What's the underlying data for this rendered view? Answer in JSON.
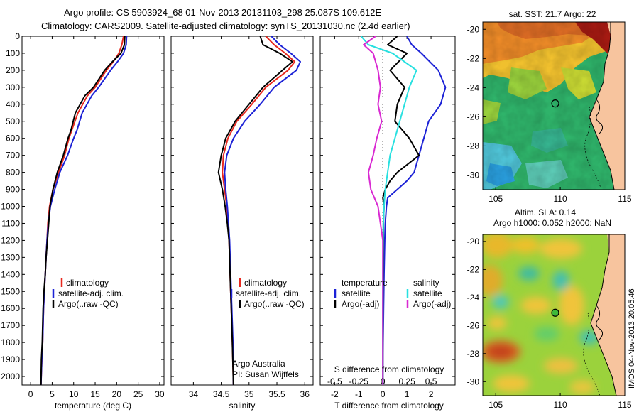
{
  "header": {
    "title_line1": "Argo profile: CS 5903924_68 01-Nov-2013 20131103_298 25.087S 109.612E",
    "title_line2": "Climatology: CARS2009. Satellite-adjusted climatology: synTS_20131030.nc (2.4d earlier)"
  },
  "colors": {
    "climatology": "#e8281e",
    "satellite": "#1c22d6",
    "argo": "#000000",
    "salinity_satellite": "#28e0e0",
    "salinity_argo": "#d92ad2"
  },
  "chart_data": [
    {
      "type": "line",
      "id": "temperature",
      "xlabel": "temperature (deg C)",
      "ylabel": "",
      "xlim": [
        -2,
        31
      ],
      "ylim": [
        2050,
        0
      ],
      "xticks": [
        0,
        5,
        10,
        15,
        20,
        25,
        30
      ],
      "yticks": [
        0,
        100,
        200,
        300,
        400,
        500,
        600,
        700,
        800,
        900,
        1000,
        1100,
        1200,
        1300,
        1400,
        1500,
        1600,
        1700,
        1800,
        1900,
        2000
      ],
      "legend": [
        "climatology",
        "satellite-adj. clim.",
        "Argo(..raw -QC)"
      ],
      "series": [
        {
          "name": "climatology",
          "color_key": "climatology",
          "x": [
            21.6,
            21.2,
            20.5,
            19.2,
            17.6,
            15.0,
            13.2,
            11.0,
            9.6,
            8.9,
            7.9,
            6.5,
            5.2,
            4.4,
            4.0,
            3.8,
            3.6,
            3.4,
            3.2,
            3.0,
            2.8,
            2.6,
            2.4
          ],
          "y": [
            0,
            50,
            100,
            150,
            200,
            300,
            350,
            450,
            550,
            600,
            700,
            800,
            900,
            1000,
            1100,
            1200,
            1300,
            1400,
            1500,
            1600,
            1800,
            1900,
            2050
          ]
        },
        {
          "name": "satellite-adj. clim.",
          "color_key": "satellite",
          "x": [
            22.3,
            22.2,
            21.6,
            20.2,
            18.6,
            15.8,
            14.2,
            12.0,
            10.8,
            10.0,
            8.6,
            6.8,
            5.6,
            4.6,
            4.1,
            3.8,
            3.6,
            3.4,
            3.2,
            3.0,
            2.8,
            2.6,
            2.4
          ],
          "y": [
            0,
            50,
            100,
            150,
            200,
            300,
            350,
            450,
            550,
            600,
            700,
            800,
            900,
            1000,
            1100,
            1200,
            1300,
            1400,
            1500,
            1600,
            1800,
            1900,
            2050
          ]
        },
        {
          "name": "Argo(..raw -QC)",
          "color_key": "argo",
          "x": [
            21.9,
            21.8,
            21.0,
            19.0,
            17.2,
            14.6,
            12.6,
            10.4,
            9.4,
            8.7,
            7.6,
            6.2,
            5.2,
            4.5,
            4.2,
            3.9,
            3.6,
            3.4,
            3.1,
            2.9,
            2.7,
            2.5,
            2.4
          ],
          "y": [
            0,
            50,
            100,
            150,
            200,
            300,
            350,
            450,
            550,
            600,
            700,
            800,
            900,
            1000,
            1100,
            1200,
            1300,
            1400,
            1500,
            1600,
            1800,
            1900,
            2050
          ]
        }
      ]
    },
    {
      "type": "line",
      "id": "salinity",
      "xlabel": "salinity",
      "xlim": [
        33.6,
        36.15
      ],
      "ylim": [
        2050,
        0
      ],
      "xticks": [
        34,
        34.5,
        35,
        35.5,
        36
      ],
      "legend": [
        "climatology",
        "satellite-adj. clim.",
        "Argo(..raw -QC)"
      ],
      "annotation": [
        "Argo Australia",
        "PI: Susan Wijffels"
      ],
      "series": [
        {
          "name": "climatology",
          "color_key": "climatology",
          "x": [
            35.3,
            35.45,
            35.65,
            35.82,
            35.7,
            35.3,
            35.05,
            34.78,
            34.62,
            34.54,
            34.52,
            34.56,
            34.6,
            34.62,
            34.64,
            34.66,
            34.68,
            34.7,
            34.72
          ],
          "y": [
            0,
            50,
            100,
            150,
            200,
            300,
            400,
            500,
            600,
            700,
            800,
            900,
            1000,
            1100,
            1200,
            1400,
            1600,
            1800,
            2050
          ]
        },
        {
          "name": "satellite-adj. clim.",
          "color_key": "satellite",
          "x": [
            35.4,
            35.55,
            35.75,
            35.92,
            35.85,
            35.45,
            35.2,
            34.92,
            34.72,
            34.6,
            34.56,
            34.58,
            34.61,
            34.63,
            34.65,
            34.67,
            34.69,
            34.71,
            34.72
          ],
          "y": [
            0,
            50,
            100,
            150,
            200,
            300,
            400,
            500,
            600,
            700,
            800,
            900,
            1000,
            1100,
            1200,
            1400,
            1600,
            1800,
            2050
          ]
        },
        {
          "name": "Argo(..raw -QC)",
          "color_key": "argo",
          "x": [
            35.2,
            35.25,
            35.55,
            35.78,
            35.6,
            35.25,
            35.0,
            34.75,
            34.58,
            34.5,
            34.45,
            34.52,
            34.57,
            34.61,
            34.64,
            34.66,
            34.68,
            34.7,
            34.72
          ],
          "y": [
            0,
            50,
            100,
            150,
            200,
            300,
            400,
            500,
            600,
            700,
            800,
            900,
            1000,
            1100,
            1200,
            1400,
            1600,
            1800,
            2050
          ]
        }
      ]
    },
    {
      "type": "line",
      "id": "differences",
      "xlabel": "T difference from climatology",
      "xlabel_top": "S difference from climatology",
      "xlim": [
        -2.6,
        3.0
      ],
      "ylim": [
        2050,
        0
      ],
      "xticks": [
        -2,
        -1,
        0,
        1,
        2
      ],
      "xticks_s": [
        "-0.5",
        "-0.25",
        "0",
        "0.25",
        "0.5"
      ],
      "legend_t": {
        "header": "temperature",
        "items": [
          "satellite",
          "Argo(-adj)"
        ]
      },
      "legend_s": {
        "header": "salinity",
        "items": [
          "satellite",
          "Argo(-adj)"
        ]
      },
      "series": [
        {
          "name": "satellite",
          "group": "temperature",
          "color_key": "satellite",
          "x": [
            1.0,
            1.2,
            1.6,
            2.3,
            2.6,
            2.4,
            1.9,
            1.7,
            1.5,
            1.3,
            1.0,
            0.6,
            0.2,
            0.15,
            0.1,
            0.08,
            0.05,
            0.03,
            0.01,
            0.0
          ],
          "y": [
            0,
            50,
            100,
            200,
            300,
            400,
            500,
            600,
            700,
            800,
            850,
            900,
            950,
            1000,
            1100,
            1200,
            1400,
            1600,
            1800,
            2050
          ]
        },
        {
          "name": "Argo(-adj)",
          "group": "temperature",
          "color_key": "argo",
          "x": [
            0.6,
            0.2,
            1.0,
            0.3,
            0.9,
            0.6,
            0.5,
            1.1,
            1.5,
            0.6,
            0.3,
            0.1,
            0.0,
            0.05,
            0.02,
            0.02,
            0.01,
            0.0,
            0.0,
            0.0
          ],
          "y": [
            0,
            50,
            100,
            200,
            300,
            400,
            500,
            600,
            700,
            800,
            850,
            900,
            950,
            1000,
            1100,
            1200,
            1400,
            1600,
            1800,
            2050
          ]
        },
        {
          "name": "satellite",
          "group": "salinity",
          "color_key": "salinity_satellite",
          "x": [
            -0.9,
            -0.6,
            0.4,
            1.4,
            1.1,
            0.9,
            0.7,
            0.5,
            0.3,
            0.2,
            0.1,
            0.05,
            0.02,
            0.01,
            0.0,
            0.0,
            0.0
          ],
          "y": [
            0,
            50,
            100,
            200,
            300,
            400,
            500,
            600,
            700,
            800,
            900,
            1000,
            1100,
            1200,
            1400,
            1600,
            2050
          ]
        },
        {
          "name": "Argo(-adj)",
          "group": "salinity",
          "color_key": "salinity_argo",
          "x": [
            -0.3,
            -0.8,
            -0.4,
            -0.2,
            -0.1,
            -0.2,
            -0.05,
            -0.25,
            -0.4,
            -0.6,
            -0.5,
            -0.2,
            -0.1,
            0.0,
            0.0,
            0.0,
            0.0
          ],
          "y": [
            0,
            50,
            100,
            200,
            300,
            400,
            500,
            600,
            700,
            800,
            900,
            1000,
            1100,
            1200,
            1400,
            1600,
            2050
          ]
        }
      ]
    },
    {
      "type": "heatmap",
      "id": "sst-map",
      "title": "sat. SST: 21.7 Argo: 22",
      "xlim": [
        104,
        115
      ],
      "ylim": [
        -31,
        -19.5
      ],
      "xticks": [
        105,
        110,
        115
      ],
      "yticks": [
        -20,
        -22,
        -24,
        -26,
        -28,
        -30
      ],
      "marker": {
        "lon": 109.612,
        "lat": -25.087
      }
    },
    {
      "type": "heatmap",
      "id": "sla-map",
      "title_line1": "Altim. SLA: 0.14",
      "title_line2": "Argo h1000: 0.052 h2000: NaN",
      "xlim": [
        104,
        115
      ],
      "ylim": [
        -31,
        -19.5
      ],
      "xticks": [
        105,
        110,
        115
      ],
      "yticks": [
        -20,
        -22,
        -24,
        -26,
        -28,
        -30
      ],
      "marker": {
        "lon": 109.612,
        "lat": -25.087
      },
      "side_label": "IMOS 04-Nov-2013 20:05:46"
    }
  ]
}
